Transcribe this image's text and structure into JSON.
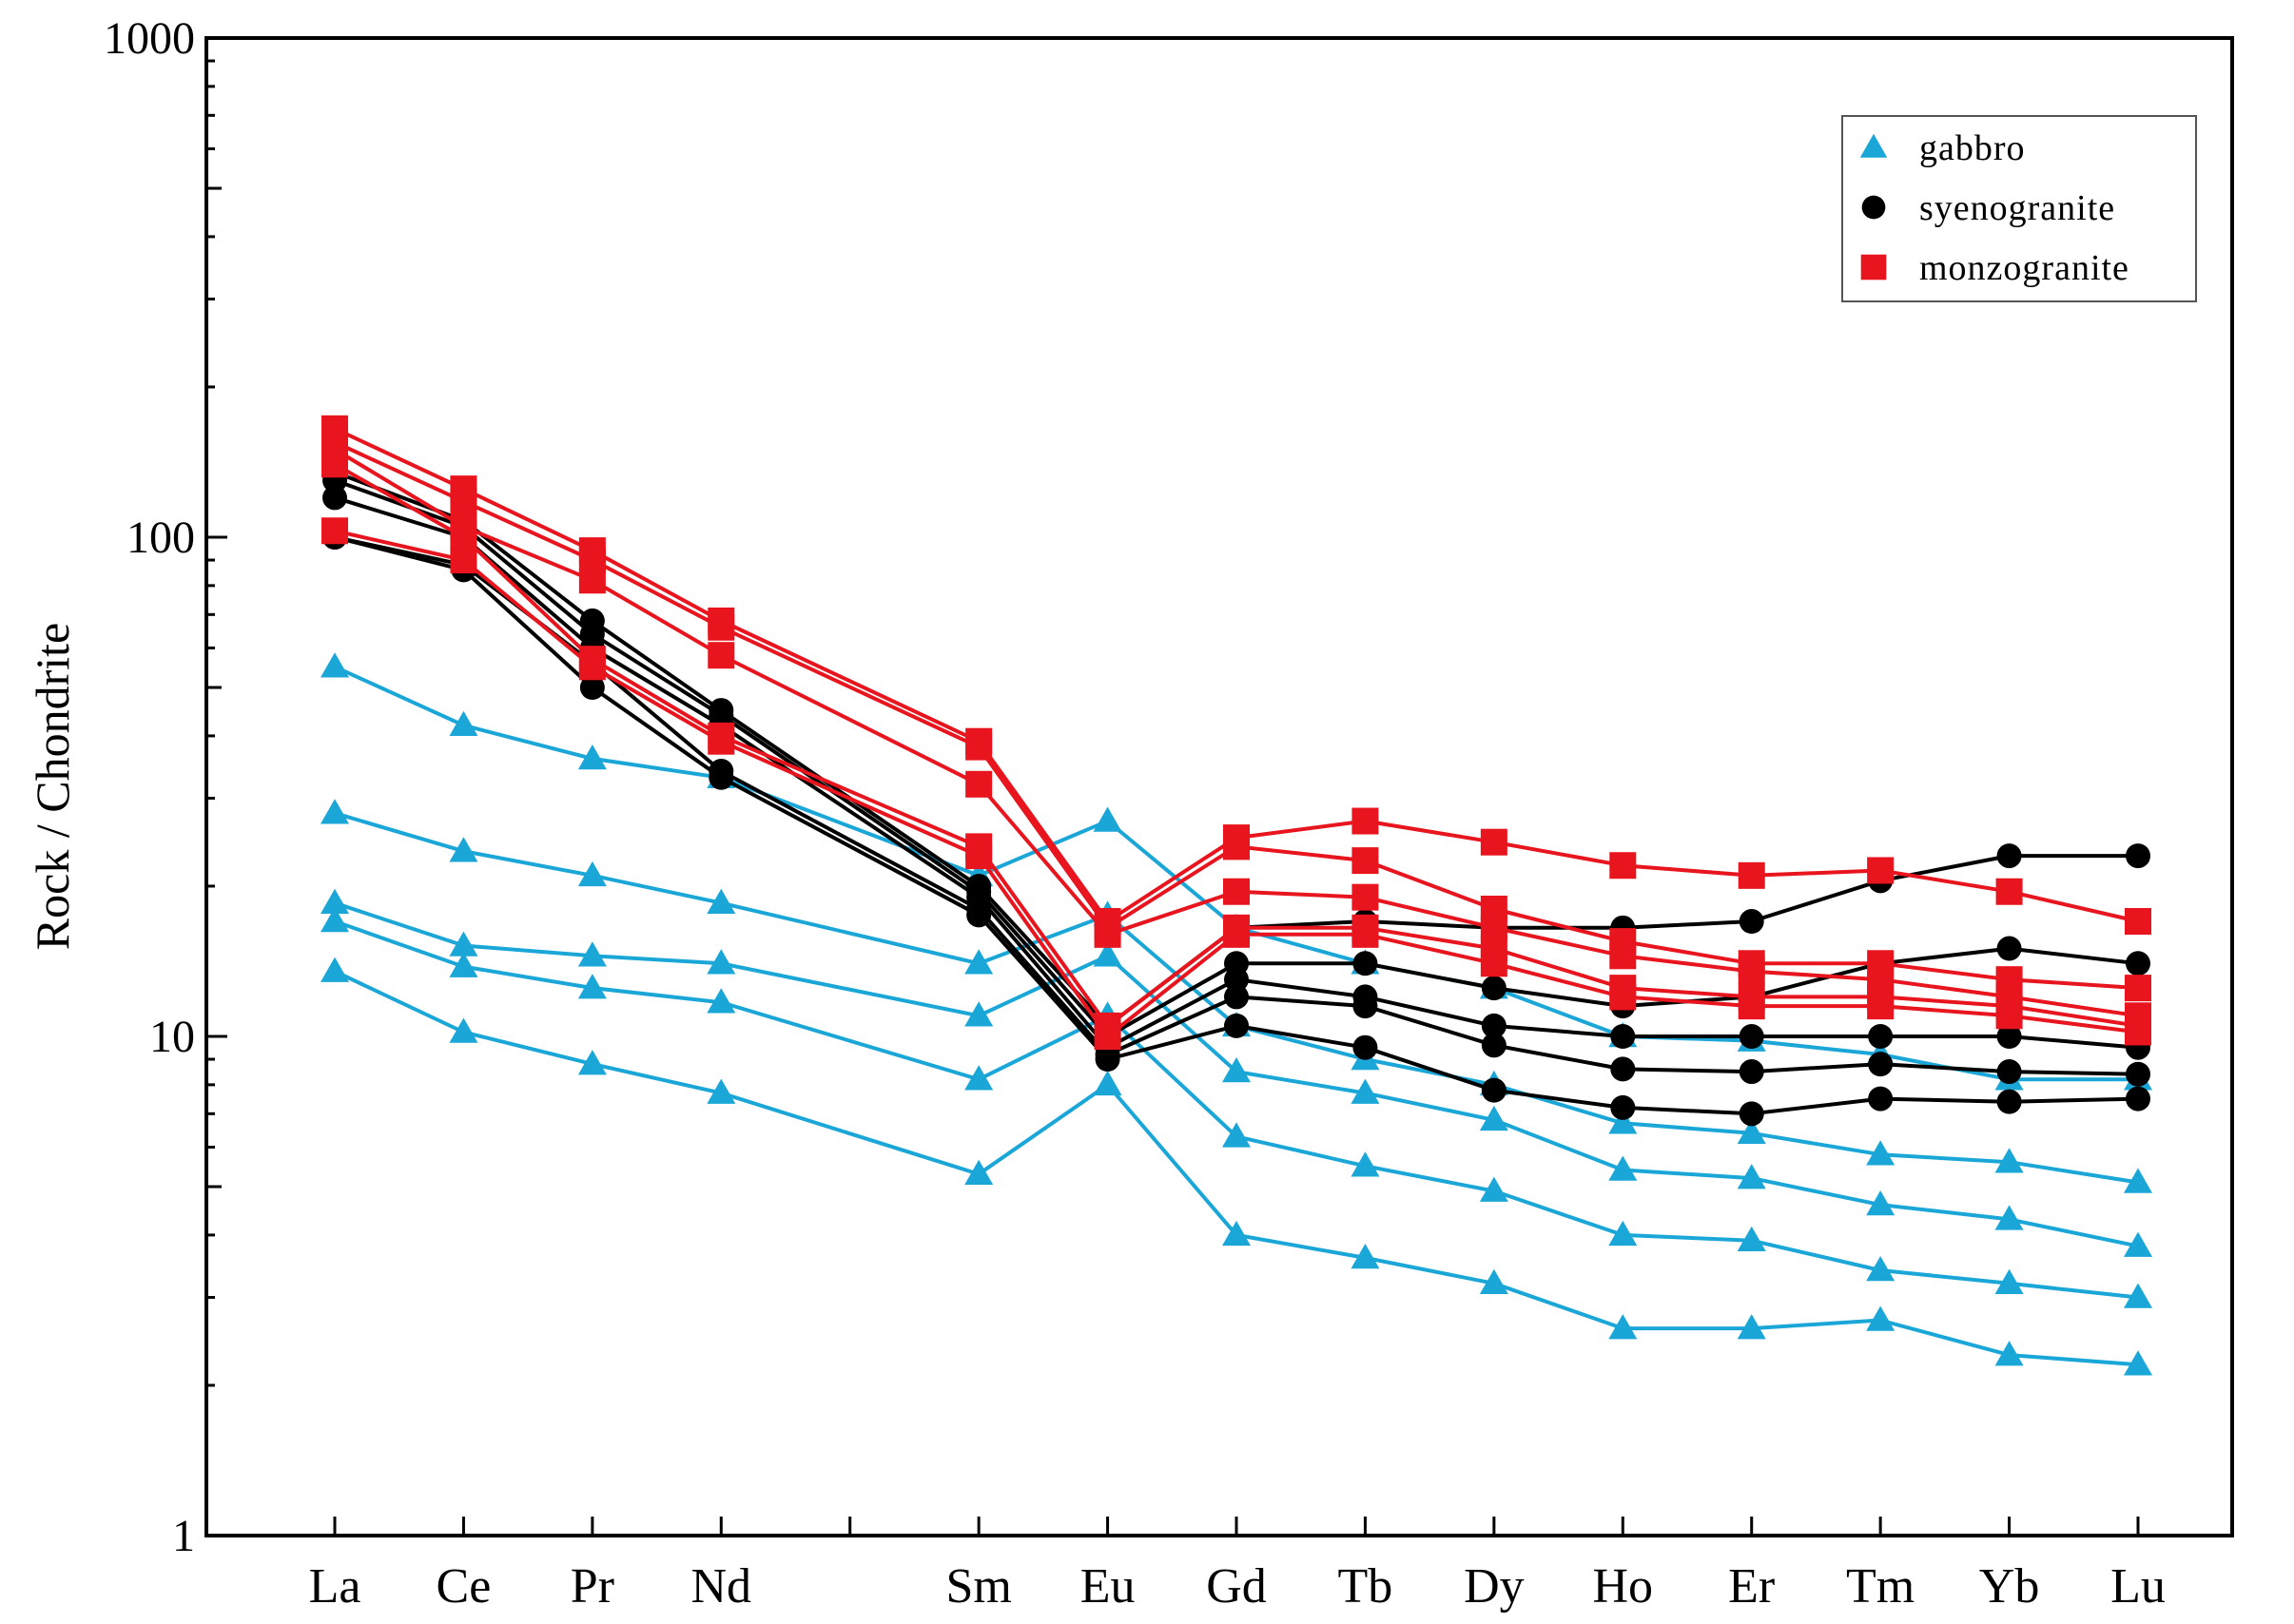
{
  "chart_data": {
    "type": "line",
    "scale": "log",
    "title": "",
    "xlabel": "",
    "ylabel": "Rock / Chondrite",
    "ylim": [
      1,
      1000
    ],
    "y_ticks": [
      "1",
      "10",
      "100",
      "1000"
    ],
    "categories": [
      "La",
      "Ce",
      "Pr",
      "Nd",
      "Sm",
      "Eu",
      "Gd",
      "Tb",
      "Dy",
      "Ho",
      "Er",
      "Tm",
      "Yb",
      "Lu"
    ],
    "category_positions": [
      1,
      2,
      3,
      4,
      6,
      7,
      8,
      9,
      10,
      11,
      12,
      13,
      14,
      15
    ],
    "legend": [
      {
        "name": "gabbro",
        "marker": "triangle",
        "color": "#1aa7d8"
      },
      {
        "name": "syenogranite",
        "marker": "circle",
        "color": "#000000"
      },
      {
        "name": "monzogranite",
        "marker": "square",
        "color": "#e8141e"
      }
    ],
    "groups": [
      {
        "name": "gabbro",
        "marker": "triangle",
        "color": "#1aa7d8",
        "series": [
          [
            55,
            42,
            36,
            33,
            21,
            27,
            16.5,
            14,
            12.5,
            10,
            9.8,
            9.2,
            8.2,
            8.2
          ],
          [
            28,
            23.5,
            21,
            18.5,
            14,
            17.5,
            10.5,
            9,
            8,
            6.7,
            6.4,
            5.8,
            5.6,
            5.1
          ],
          [
            18.5,
            15.2,
            14.5,
            14,
            11,
            14.5,
            8.5,
            7.7,
            6.8,
            5.4,
            5.2,
            4.6,
            4.3,
            3.8
          ],
          [
            17,
            13.8,
            12.5,
            11.7,
            8.2,
            11,
            6.3,
            5.5,
            4.9,
            4.0,
            3.9,
            3.4,
            3.2,
            3.0
          ],
          [
            13.5,
            10.2,
            8.8,
            7.7,
            5.3,
            8,
            4.0,
            3.6,
            3.2,
            2.6,
            2.6,
            2.7,
            2.3,
            2.2
          ]
        ]
      },
      {
        "name": "syenogranite",
        "marker": "circle",
        "color": "#000000",
        "series": [
          [
            135,
            108,
            68,
            45,
            20,
            10.5,
            16.5,
            17,
            16.5,
            16.5,
            17,
            20.5,
            23,
            23
          ],
          [
            130,
            105,
            64,
            44,
            19.5,
            10,
            14,
            14,
            12.5,
            11.5,
            12,
            14,
            15,
            14
          ],
          [
            120,
            100,
            60,
            42,
            19,
            9.5,
            13,
            12,
            10.5,
            10,
            10,
            10,
            10,
            9.5
          ],
          [
            100,
            88,
            56,
            34,
            18,
            9.2,
            12,
            11.5,
            9.6,
            8.6,
            8.5,
            8.8,
            8.5,
            8.4
          ],
          [
            100,
            86,
            50,
            33,
            17.5,
            9,
            10.5,
            9.5,
            7.8,
            7.2,
            7,
            7.5,
            7.4,
            7.5
          ]
        ]
      },
      {
        "name": "monzogranite",
        "marker": "square",
        "color": "#e8141e",
        "series": [
          [
            165,
            125,
            94,
            68,
            39,
            17,
            25,
            27,
            24.5,
            22,
            21,
            21.5,
            19.5,
            17
          ],
          [
            155,
            118,
            90,
            66,
            38,
            16.5,
            24,
            22.5,
            18,
            15.5,
            14,
            14,
            13,
            12.5
          ],
          [
            150,
            105,
            82,
            58,
            32,
            16,
            19.5,
            19,
            16.5,
            14.5,
            13.5,
            13,
            12,
            11
          ],
          [
            140,
            100,
            57,
            40,
            24,
            10.5,
            16.5,
            16.5,
            15,
            12.5,
            12,
            12,
            11.5,
            10.5
          ],
          [
            103,
            90,
            55,
            39,
            23,
            10,
            16,
            16,
            14,
            12,
            11.5,
            11.5,
            11,
            10.2
          ]
        ]
      }
    ]
  }
}
